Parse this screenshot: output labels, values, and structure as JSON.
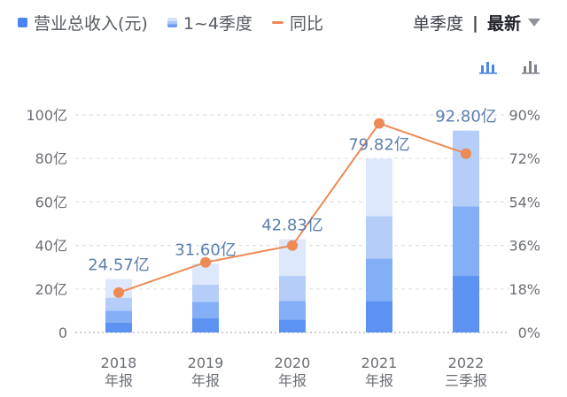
{
  "legend": {
    "revenue_label": "营业总收入(元)",
    "quarters_label": "1~4季度",
    "yoy_label": "同比"
  },
  "controls": {
    "view_label": "单季度",
    "separator": "|",
    "sort_label": "最新"
  },
  "icons": {
    "left": "quarterly-stacked-bar-chart-icon",
    "right": "annual-bar-chart-icon"
  },
  "colors": {
    "q1": "#5c93f2",
    "q2": "#83aff6",
    "q3": "#b4cdf9",
    "q4": "#dde8fc",
    "line": "#ee8a55",
    "value_label": "#5b7fae",
    "axis_text": "#6b6e75"
  },
  "chart_data": {
    "type": "bar",
    "categories": [
      "2018\n年报",
      "2019\n年报",
      "2020\n年报",
      "2021\n年报",
      "2022\n三季报"
    ],
    "stacked_quarters": [
      [
        4.5,
        5.5,
        6,
        8.57
      ],
      [
        6.5,
        7.5,
        8,
        9.6
      ],
      [
        6,
        8.5,
        11.5,
        16.83
      ],
      [
        14.5,
        19.5,
        19.5,
        26.32
      ],
      [
        26,
        32,
        34.8
      ]
    ],
    "totals": [
      24.57,
      31.6,
      42.83,
      79.82,
      92.8
    ],
    "total_labels": [
      "24.57亿",
      "31.60亿",
      "42.83亿",
      "79.82亿",
      "92.80亿"
    ],
    "yoy_percent": [
      16.5,
      29,
      36,
      86.5,
      74
    ],
    "y_left": {
      "ticks": [
        0,
        20,
        40,
        60,
        80,
        100
      ],
      "tick_labels": [
        "0",
        "20亿",
        "40亿",
        "60亿",
        "80亿",
        "100亿"
      ],
      "range": [
        0,
        100
      ]
    },
    "y_right": {
      "ticks": [
        0,
        18,
        36,
        54,
        72,
        90
      ],
      "tick_labels": [
        "0%",
        "18%",
        "36%",
        "54%",
        "72%",
        "90%"
      ],
      "range": [
        0,
        90
      ]
    },
    "grid": "dashed-horizontal",
    "legend_position": "top-left"
  }
}
